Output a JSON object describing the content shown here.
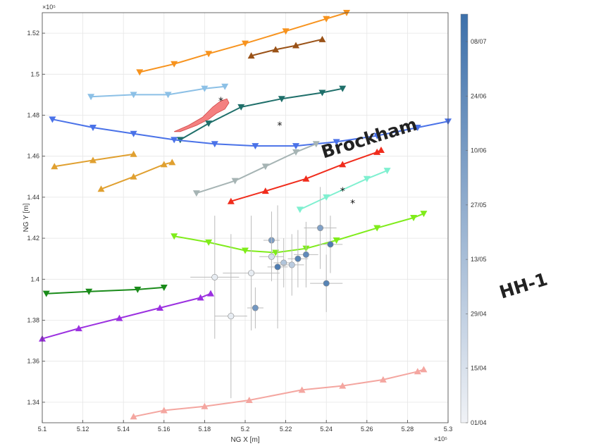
{
  "chart_data": {
    "type": "line",
    "xlabel": "NG X [m]",
    "ylabel": "NG Y [m]",
    "x_exponent_label": "×10⁵",
    "y_exponent_label": "×10⁵",
    "xlim": [
      5.1,
      5.3
    ],
    "ylim": [
      1.33,
      1.53
    ],
    "x_ticks": [
      "5.1",
      "5.12",
      "5.14",
      "5.16",
      "5.18",
      "5.2",
      "5.22",
      "5.24",
      "5.26",
      "5.28",
      "5.3"
    ],
    "y_ticks": [
      "1.34",
      "1.36",
      "1.38",
      "1.4",
      "1.42",
      "1.44",
      "1.46",
      "1.48",
      "1.5",
      "1.52"
    ],
    "grid": true,
    "colorbar": {
      "ticks": [
        "08/07",
        "24/06",
        "10/06",
        "27/05",
        "13/05",
        "29/04",
        "15/04",
        "01/04"
      ],
      "color_low": "#f0f2f6",
      "color_high": "#3d70aa"
    },
    "annotations": [
      {
        "text": "Brockham",
        "x": 5.262,
        "y": 1.466,
        "rotation": -17
      },
      {
        "text": "HH-1",
        "x": 5.338,
        "y": 1.394,
        "rotation": -17
      }
    ],
    "series": [
      {
        "color": "#f7931e",
        "marker": "down",
        "x": [
          5.148,
          5.165,
          5.182,
          5.2,
          5.22,
          5.24,
          5.25
        ],
        "y": [
          1.501,
          1.505,
          1.51,
          1.515,
          1.521,
          1.527,
          1.53
        ]
      },
      {
        "color": "#9a5217",
        "marker": "up",
        "x": [
          5.203,
          5.215,
          5.225,
          5.238
        ],
        "y": [
          1.509,
          1.512,
          1.514,
          1.517
        ]
      },
      {
        "color": "#8cc0e6",
        "marker": "down",
        "x": [
          5.124,
          5.145,
          5.162,
          5.18,
          5.19
        ],
        "y": [
          1.489,
          1.49,
          1.49,
          1.493,
          1.494
        ]
      },
      {
        "color": "#1f6f6a",
        "marker": "down",
        "x": [
          5.168,
          5.182,
          5.198,
          5.218,
          5.238,
          5.248
        ],
        "y": [
          1.468,
          1.476,
          1.484,
          1.488,
          1.491,
          1.493
        ]
      },
      {
        "color": "#4a72e8",
        "marker": "down",
        "x": [
          5.105,
          5.125,
          5.145,
          5.165,
          5.185,
          5.205,
          5.225,
          5.245,
          5.265,
          5.285,
          5.3
        ],
        "y": [
          1.478,
          1.474,
          1.471,
          1.468,
          1.466,
          1.465,
          1.465,
          1.467,
          1.47,
          1.474,
          1.477
        ]
      },
      {
        "color": "#e0a030",
        "marker": "up",
        "x": [
          5.106,
          5.125,
          5.145
        ],
        "y": [
          1.455,
          1.458,
          1.461
        ]
      },
      {
        "color": "#e0a030",
        "marker": "up",
        "x": [
          5.129,
          5.145,
          5.16,
          5.164
        ],
        "y": [
          1.444,
          1.45,
          1.456,
          1.457
        ]
      },
      {
        "color": "#a6b4b4",
        "marker": "down",
        "x": [
          5.176,
          5.195,
          5.21,
          5.225,
          5.235
        ],
        "y": [
          1.442,
          1.448,
          1.455,
          1.462,
          1.466
        ]
      },
      {
        "color": "#f02c1c",
        "marker": "up",
        "x": [
          5.193,
          5.21,
          5.23,
          5.248,
          5.265,
          5.267
        ],
        "y": [
          1.438,
          1.443,
          1.449,
          1.456,
          1.462,
          1.463
        ]
      },
      {
        "color": "#7ff0d0",
        "marker": "down",
        "x": [
          5.227,
          5.24,
          5.26,
          5.27
        ],
        "y": [
          1.434,
          1.44,
          1.449,
          1.453
        ]
      },
      {
        "color": "#7fec1a",
        "marker": "down",
        "x": [
          5.165,
          5.182,
          5.2,
          5.215,
          5.23,
          5.245,
          5.265,
          5.283,
          5.288
        ],
        "y": [
          1.421,
          1.418,
          1.414,
          1.413,
          1.415,
          1.419,
          1.425,
          1.43,
          1.432
        ]
      },
      {
        "color": "#1a8b1a",
        "marker": "down",
        "x": [
          5.102,
          5.123,
          5.147,
          5.16
        ],
        "y": [
          1.393,
          1.394,
          1.395,
          1.396
        ]
      },
      {
        "color": "#9b30e0",
        "marker": "up",
        "x": [
          5.1,
          5.118,
          5.138,
          5.158,
          5.178,
          5.183
        ],
        "y": [
          1.371,
          1.376,
          1.381,
          1.386,
          1.391,
          1.393
        ]
      },
      {
        "color": "#f4a6a0",
        "marker": "up",
        "x": [
          5.145,
          5.16,
          5.18,
          5.202,
          5.228,
          5.248,
          5.268,
          5.285,
          5.288
        ],
        "y": [
          1.333,
          1.336,
          1.338,
          1.341,
          1.346,
          1.348,
          1.351,
          1.355,
          1.356
        ]
      }
    ],
    "asterisks": [
      {
        "x": 5.188,
        "y": 1.487
      },
      {
        "x": 5.217,
        "y": 1.475
      },
      {
        "x": 5.248,
        "y": 1.443
      },
      {
        "x": 5.253,
        "y": 1.437
      }
    ],
    "events": [
      {
        "x": 5.213,
        "y": 1.419,
        "c": 0.65,
        "len_x": 0.004,
        "len_y": 0.014
      },
      {
        "x": 5.237,
        "y": 1.425,
        "c": 0.62,
        "len_x": 0.008,
        "len_y": 0.02
      },
      {
        "x": 5.213,
        "y": 1.411,
        "c": 0.15,
        "len_x": 0.006,
        "len_y": 0.012
      },
      {
        "x": 5.216,
        "y": 1.406,
        "c": 0.9,
        "len_x": 0.005,
        "len_y": 0.03
      },
      {
        "x": 5.219,
        "y": 1.408,
        "c": 0.35,
        "len_x": 0.005,
        "len_y": 0.012
      },
      {
        "x": 5.223,
        "y": 1.407,
        "c": 0.3,
        "len_x": 0.006,
        "len_y": 0.015
      },
      {
        "x": 5.226,
        "y": 1.41,
        "c": 0.85,
        "len_x": 0.005,
        "len_y": 0.014
      },
      {
        "x": 5.23,
        "y": 1.412,
        "c": 0.8,
        "len_x": 0.006,
        "len_y": 0.016
      },
      {
        "x": 5.242,
        "y": 1.417,
        "c": 0.9,
        "len_x": 0.006,
        "len_y": 0.014
      },
      {
        "x": 5.24,
        "y": 1.398,
        "c": 0.85,
        "len_x": 0.008,
        "len_y": 0.014
      },
      {
        "x": 5.205,
        "y": 1.386,
        "c": 0.7,
        "len_x": 0.004,
        "len_y": 0.01
      },
      {
        "x": 5.203,
        "y": 1.403,
        "c": 0.05,
        "len_x": 0.014,
        "len_y": 0.028
      },
      {
        "x": 5.185,
        "y": 1.401,
        "c": 0.05,
        "len_x": 0.012,
        "len_y": 0.03
      },
      {
        "x": 5.193,
        "y": 1.382,
        "c": 0.05,
        "len_x": 0.008,
        "len_y": 0.04
      }
    ],
    "highlight_region": {
      "color": "#f26a6a",
      "x": [
        5.165,
        5.172,
        5.179,
        5.184,
        5.188,
        5.191,
        5.192,
        5.19,
        5.186,
        5.182,
        5.176,
        5.168
      ],
      "y": [
        1.472,
        1.475,
        1.479,
        1.484,
        1.487,
        1.488,
        1.486,
        1.483,
        1.481,
        1.478,
        1.475,
        1.472
      ]
    }
  }
}
